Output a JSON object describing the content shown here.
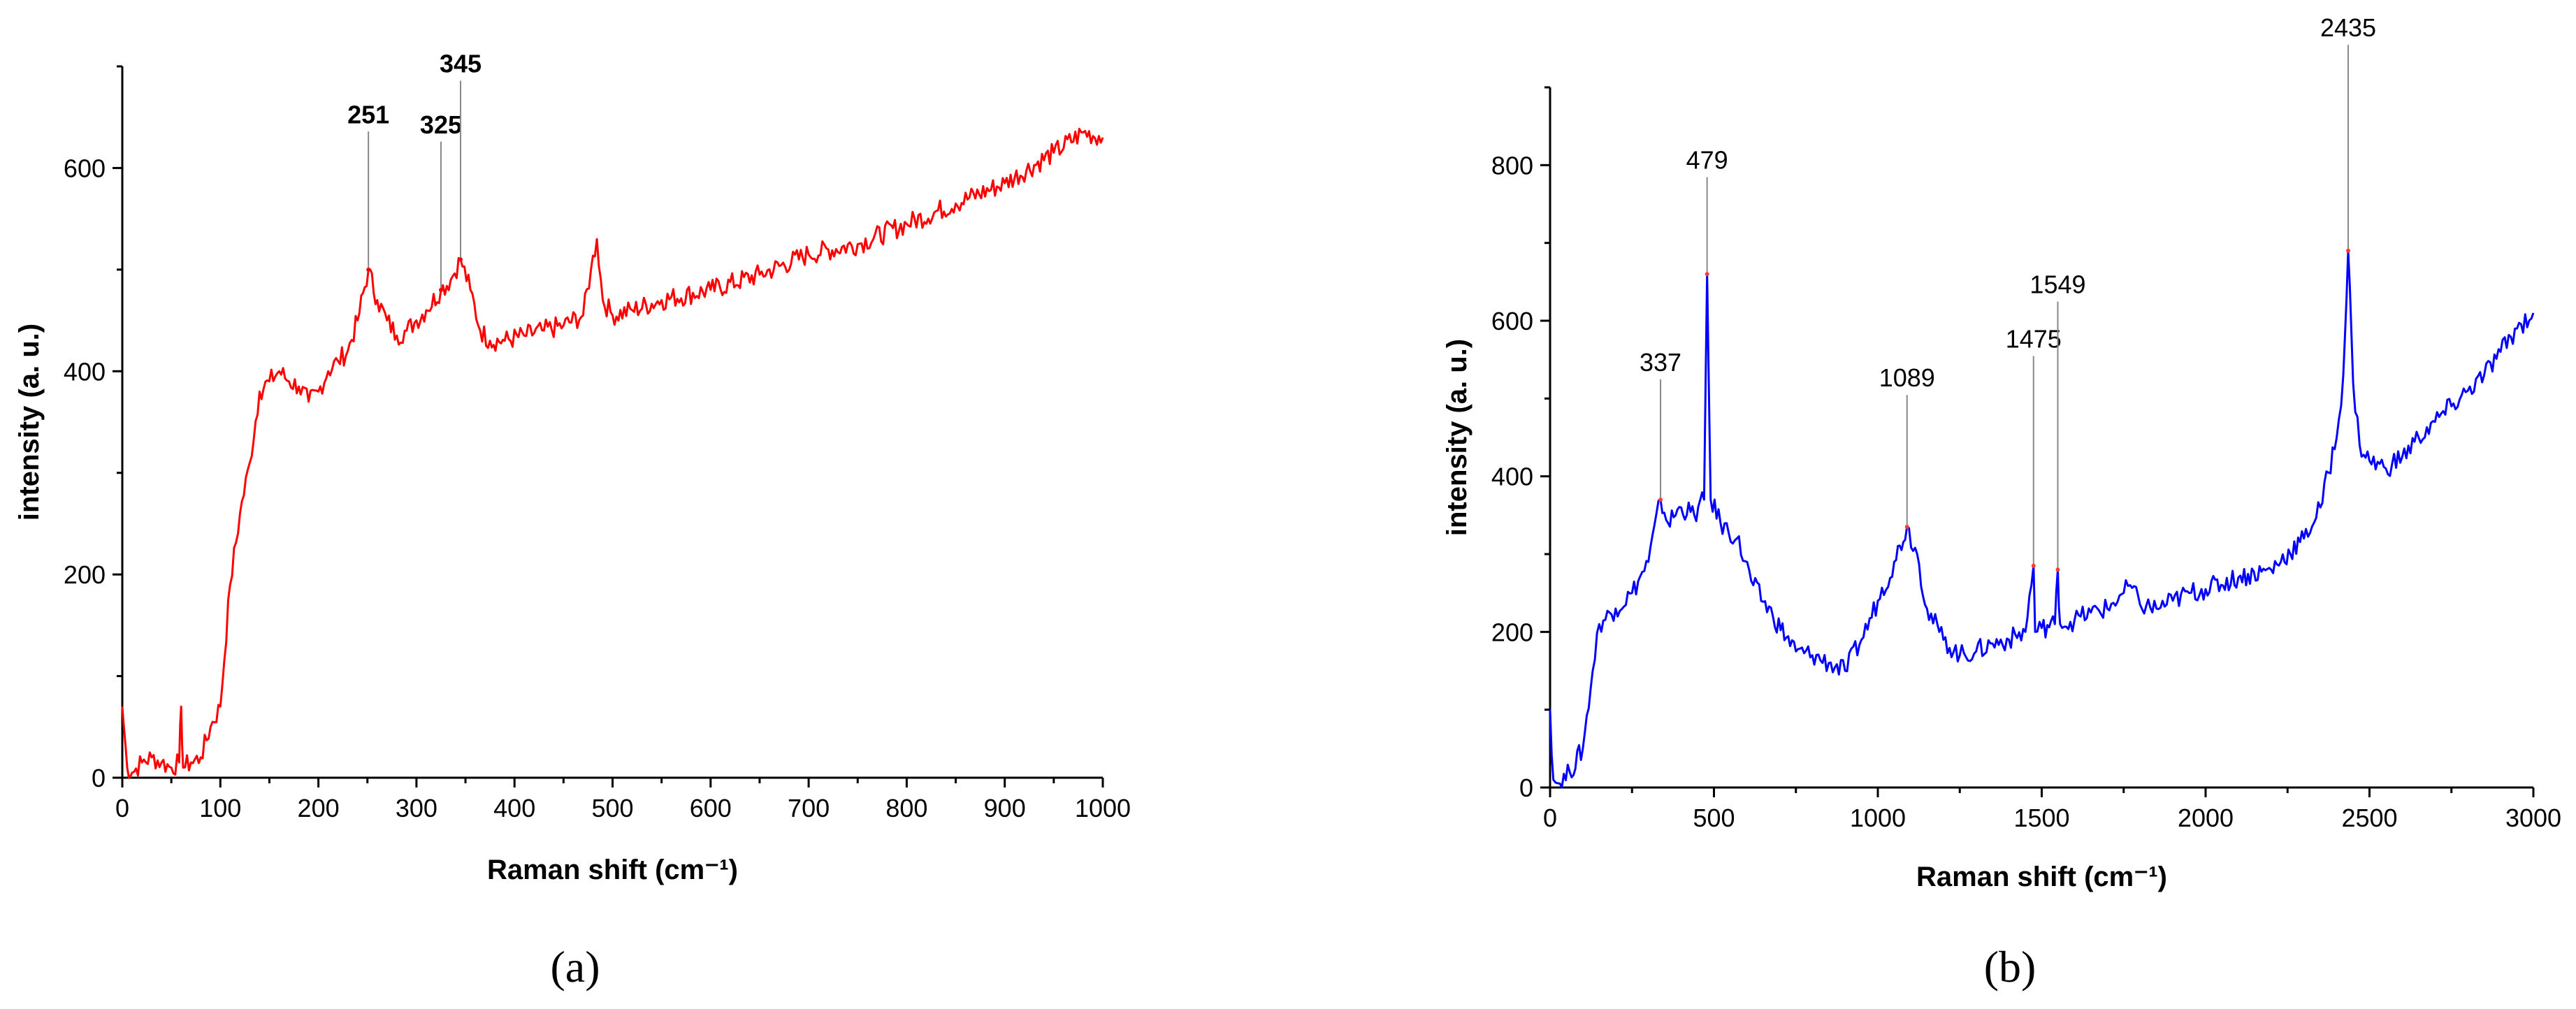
{
  "chart_data": [
    {
      "type": "line",
      "panel": "(a)",
      "xlabel": "Raman shift (cm⁻¹)",
      "ylabel": "intensity (a. u.)",
      "xlim": [
        0,
        1000
      ],
      "ylim": [
        0,
        700
      ],
      "xticks": [
        0,
        100,
        200,
        300,
        400,
        500,
        600,
        700,
        800,
        900,
        1000
      ],
      "yticks": [
        0,
        200,
        400,
        600
      ],
      "color": "#ff0000",
      "peaks": [
        {
          "label": "251",
          "x": 251,
          "y": 500,
          "top": 640
        },
        {
          "label": "325",
          "x": 325,
          "y": 480,
          "top": 630
        },
        {
          "label": "345",
          "x": 345,
          "y": 510,
          "top": 690
        }
      ],
      "series": [
        {
          "x": [
            0,
            5,
            10,
            20,
            30,
            40,
            50,
            58,
            60,
            62,
            70,
            80,
            90,
            100,
            110,
            120,
            130,
            140,
            150,
            160,
            170,
            180,
            190,
            200,
            210,
            220,
            230,
            240,
            251,
            260,
            270,
            280,
            290,
            300,
            310,
            325,
            335,
            345,
            355,
            365,
            375,
            390,
            410,
            430,
            450,
            470,
            478,
            484,
            490,
            500,
            520,
            550,
            600,
            650,
            700,
            750,
            800,
            850,
            900,
            950,
            980,
            1000
          ],
          "y": [
            70,
            10,
            5,
            15,
            20,
            15,
            10,
            15,
            70,
            10,
            15,
            20,
            50,
            70,
            190,
            260,
            310,
            380,
            390,
            400,
            390,
            385,
            370,
            380,
            400,
            410,
            420,
            450,
            500,
            470,
            450,
            435,
            440,
            450,
            460,
            480,
            490,
            510,
            480,
            440,
            430,
            430,
            435,
            440,
            445,
            455,
            500,
            530,
            470,
            455,
            460,
            470,
            480,
            495,
            515,
            525,
            545,
            565,
            585,
            615,
            635,
            630
          ]
        }
      ]
    },
    {
      "type": "line",
      "panel": "(b)",
      "xlabel": "Raman shift (cm⁻¹)",
      "ylabel": "intensity (a. u.)",
      "xlim": [
        0,
        3000
      ],
      "ylim": [
        0,
        900
      ],
      "xticks": [
        0,
        500,
        1000,
        1500,
        2000,
        2500,
        3000
      ],
      "yticks": [
        0,
        200,
        400,
        600,
        800
      ],
      "color": "#0000ff",
      "peaks": [
        {
          "label": "337",
          "x": 337,
          "y": 370,
          "top": 530
        },
        {
          "label": "479",
          "x": 479,
          "y": 660,
          "top": 790
        },
        {
          "label": "1089",
          "x": 1089,
          "y": 335,
          "top": 510
        },
        {
          "label": "1475",
          "x": 1475,
          "y": 285,
          "top": 560
        },
        {
          "label": "1549",
          "x": 1549,
          "y": 280,
          "top": 630
        },
        {
          "label": "2435",
          "x": 2435,
          "y": 690,
          "top": 960
        }
      ],
      "series": [
        {
          "x": [
            0,
            10,
            30,
            60,
            100,
            130,
            150,
            200,
            250,
            300,
            337,
            360,
            400,
            440,
            470,
            479,
            490,
            520,
            570,
            620,
            680,
            750,
            800,
            850,
            900,
            950,
            1000,
            1050,
            1089,
            1120,
            1150,
            1200,
            1250,
            1300,
            1350,
            1400,
            1450,
            1475,
            1480,
            1500,
            1540,
            1549,
            1556,
            1600,
            1650,
            1700,
            1750,
            1770,
            1800,
            1850,
            1900,
            1950,
            2000,
            2100,
            2200,
            2300,
            2350,
            2400,
            2420,
            2435,
            2450,
            2470,
            2500,
            2550,
            2600,
            2650,
            2700,
            2750,
            2800,
            2850,
            2900,
            2950,
            3000
          ],
          "y": [
            100,
            10,
            5,
            20,
            50,
            150,
            210,
            230,
            250,
            290,
            370,
            340,
            360,
            350,
            370,
            660,
            370,
            340,
            320,
            260,
            220,
            175,
            170,
            160,
            150,
            190,
            240,
            290,
            335,
            300,
            230,
            190,
            170,
            175,
            185,
            190,
            200,
            285,
            200,
            205,
            210,
            280,
            210,
            215,
            225,
            230,
            250,
            260,
            235,
            230,
            240,
            250,
            255,
            270,
            280,
            320,
            360,
            450,
            530,
            690,
            520,
            440,
            420,
            410,
            425,
            450,
            470,
            490,
            510,
            530,
            560,
            590,
            610
          ]
        }
      ]
    }
  ]
}
